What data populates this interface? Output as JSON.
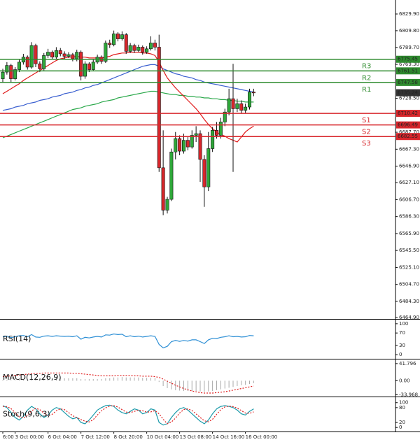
{
  "chart_data": [
    {
      "type": "candlestick",
      "categories": [
        "6:00",
        null,
        null,
        "3 Oct 00:00",
        null,
        null,
        null,
        null,
        null,
        null,
        null,
        "6 Oct 04:00",
        null,
        null,
        null,
        null,
        null,
        null,
        null,
        "7 Oct 12:00",
        null,
        null,
        null,
        null,
        null,
        null,
        null,
        "8 Oct 20:00",
        null,
        null,
        null,
        null,
        null,
        null,
        null,
        "10 Oct 04:00",
        null,
        null,
        null,
        null,
        null,
        null,
        null,
        "13 Oct 08:00",
        null,
        null,
        null,
        null,
        null,
        null,
        null,
        "14 Oct 16:00",
        null,
        null,
        null,
        null,
        null,
        null,
        null,
        "16 Oct 00:00",
        null,
        null
      ],
      "open": [
        6752,
        6760,
        6768,
        6752,
        6763,
        6772,
        6778,
        6766,
        6792,
        6770,
        6764,
        6780,
        6784,
        6778,
        6786,
        6782,
        6779,
        6781,
        6776,
        6784,
        6755,
        6770,
        6763,
        6772,
        6778,
        6773,
        6795,
        6793,
        6806,
        6800,
        6805,
        6785,
        6792,
        6786,
        6790,
        6784,
        6788,
        6795,
        6790,
        6645,
        6594,
        6607,
        6664,
        6680,
        6665,
        6678,
        6670,
        6684,
        6686,
        6655,
        6622,
        6668,
        6690,
        6684,
        6700,
        6712,
        6728,
        6716,
        6722,
        6714,
        6718,
        6736
      ],
      "high": [
        6764,
        6772,
        6770,
        6766,
        6776,
        6782,
        6780,
        6796,
        6794,
        6773,
        6783,
        6788,
        6786,
        6790,
        6789,
        6785,
        6784,
        6783,
        6787,
        6786,
        6773,
        6772,
        6775,
        6781,
        6780,
        6798,
        6799,
        6810,
        6808,
        6809,
        6807,
        6795,
        6794,
        6793,
        6792,
        6791,
        6803,
        6799,
        6805,
        6690,
        6610,
        6668,
        6688,
        6684,
        6686,
        6682,
        6690,
        6695,
        6690,
        6660,
        6688,
        6694,
        6700,
        6705,
        6716,
        6740,
        6770,
        6728,
        6726,
        6722,
        6740,
        6740
      ],
      "low": [
        6748,
        6757,
        6748,
        6750,
        6760,
        6769,
        6763,
        6764,
        6766,
        6760,
        6762,
        6777,
        6775,
        6776,
        6779,
        6776,
        6777,
        6773,
        6773,
        6750,
        6752,
        6760,
        6761,
        6770,
        6770,
        6771,
        6789,
        6791,
        6797,
        6798,
        6782,
        6783,
        6783,
        6784,
        6781,
        6782,
        6786,
        6786,
        6640,
        6588,
        6590,
        6605,
        6655,
        6660,
        6662,
        6666,
        6668,
        6676,
        6628,
        6598,
        6617,
        6664,
        6680,
        6680,
        6695,
        6708,
        6640,
        6712,
        6710,
        6711,
        6715,
        6731
      ],
      "close": [
        6760,
        6768,
        6752,
        6763,
        6772,
        6778,
        6766,
        6792,
        6770,
        6764,
        6780,
        6784,
        6778,
        6786,
        6782,
        6779,
        6781,
        6776,
        6784,
        6755,
        6770,
        6763,
        6772,
        6778,
        6773,
        6795,
        6793,
        6806,
        6800,
        6805,
        6785,
        6792,
        6786,
        6790,
        6784,
        6788,
        6795,
        6790,
        6645,
        6594,
        6607,
        6664,
        6680,
        6665,
        6678,
        6670,
        6684,
        6686,
        6655,
        6622,
        6668,
        6690,
        6684,
        6700,
        6712,
        6728,
        6716,
        6722,
        6714,
        6718,
        6736,
        6735
      ],
      "up_color": "#2fa83a",
      "down_color": "#d8262b",
      "series": [
        {
          "color": "#2aa84a",
          "values": [
            6681,
            6683,
            6685,
            6687,
            6689,
            6691,
            6693,
            6695,
            6697,
            6699,
            6701,
            6703,
            6705,
            6707,
            6709,
            6711,
            6713,
            6715,
            6716,
            6717,
            6719,
            6720,
            6721,
            6722,
            6724,
            6725,
            6726,
            6727,
            6729,
            6730,
            6731,
            6732,
            6733,
            6734,
            6735,
            6736,
            6737,
            6737,
            6736,
            6735,
            6734,
            6733,
            6733,
            6732,
            6732,
            6731,
            6731,
            6730,
            6730,
            6729,
            6729,
            6728,
            6728,
            6727,
            6727,
            6726,
            6726,
            6725,
            6725,
            6724,
            6724,
            6724
          ]
        },
        {
          "color": "#3a5fd0",
          "values": [
            6714,
            6715,
            6716,
            6718,
            6719,
            6720,
            6722,
            6723,
            6724,
            6726,
            6727,
            6728,
            6730,
            6731,
            6732,
            6734,
            6735,
            6736,
            6738,
            6739,
            6741,
            6742,
            6744,
            6745,
            6747,
            6749,
            6751,
            6753,
            6755,
            6757,
            6759,
            6761,
            6763,
            6765,
            6767,
            6768,
            6769,
            6769,
            6767,
            6764,
            6762,
            6760,
            6758,
            6757,
            6755,
            6754,
            6753,
            6751,
            6750,
            6748,
            6747,
            6746,
            6745,
            6744,
            6743,
            6742,
            6741,
            6740,
            6739,
            6738,
            6737,
            6736
          ]
        },
        {
          "color": "#e01a1a",
          "values": [
            6734,
            6737,
            6740,
            6743,
            6746,
            6750,
            6753,
            6756,
            6759,
            6762,
            6765,
            6768,
            6771,
            6774,
            6776,
            6777,
            6778,
            6778,
            6779,
            6778,
            6778,
            6777,
            6777,
            6777,
            6777,
            6778,
            6779,
            6781,
            6782,
            6783,
            6783,
            6784,
            6784,
            6784,
            6783,
            6783,
            6782,
            6780,
            6772,
            6762,
            6753,
            6747,
            6741,
            6736,
            6731,
            6726,
            6721,
            6716,
            6710,
            6703,
            6697,
            6692,
            6688,
            6685,
            6683,
            6680,
            6678,
            6676,
            6682,
            6688,
            6692,
            6695
          ]
        }
      ],
      "levels": [
        {
          "name": "R3",
          "value": 6775.45,
          "color": "#2e8b2e"
        },
        {
          "name": "R2",
          "value": 6761.51,
          "color": "#2e8b2e"
        },
        {
          "name": "R1",
          "value": 6747.58,
          "color": "#2e8b2e"
        },
        {
          "name": "S1",
          "value": 6710.42,
          "color": "#d8262b"
        },
        {
          "name": "S2",
          "value": 6696.49,
          "color": "#d8262b"
        },
        {
          "name": "S3",
          "value": 6682.55,
          "color": "#d8262b"
        }
      ],
      "last_price": 6735.24,
      "last_price_color": "#333333",
      "ylim": [
        6464.06,
        6846.72
      ],
      "yticks": [
        {
          "value": 6829.9,
          "label": "6829.90"
        },
        {
          "value": 6809.8,
          "label": "6809.80"
        },
        {
          "value": 6789.7,
          "label": "6789.70"
        },
        {
          "value": 6769.3,
          "label": "6769.30"
        },
        {
          "value": 6728.5,
          "label": "6728.50"
        },
        {
          "value": 6687.7,
          "label": "6687.70"
        },
        {
          "value": 6667.3,
          "label": "6667.30"
        },
        {
          "value": 6646.9,
          "label": "6646.90"
        },
        {
          "value": 6627.1,
          "label": "6627.10"
        },
        {
          "value": 6606.7,
          "label": "6606.70"
        },
        {
          "value": 6586.3,
          "label": "6586.30"
        },
        {
          "value": 6565.9,
          "label": "6565.90"
        },
        {
          "value": 6545.5,
          "label": "6545.50"
        },
        {
          "value": 6525.1,
          "label": "6525.10"
        },
        {
          "value": 6504.7,
          "label": "6504.70"
        },
        {
          "value": 6484.3,
          "label": "6484.30"
        },
        {
          "value": 6464.9,
          "label": "6464.90"
        }
      ]
    },
    {
      "type": "line",
      "title": "RSI(14)",
      "series": [
        {
          "color": "#2d8fd5",
          "values": [
            58,
            60,
            55,
            58,
            61,
            62,
            58,
            65,
            57,
            56,
            60,
            61,
            59,
            61,
            60,
            59,
            60,
            58,
            61,
            50,
            56,
            54,
            57,
            59,
            57,
            64,
            63,
            67,
            65,
            66,
            58,
            61,
            58,
            60,
            57,
            59,
            61,
            59,
            33,
            22,
            27,
            42,
            46,
            43,
            46,
            44,
            48,
            48,
            42,
            36,
            48,
            53,
            52,
            56,
            58,
            61,
            58,
            59,
            57,
            58,
            62,
            61
          ]
        }
      ],
      "ylim": [
        -11,
        111
      ],
      "yticks": [
        0,
        30,
        70,
        100
      ]
    },
    {
      "type": "bar",
      "title": "MACD(12,26,9)",
      "color": "#a8a8a8",
      "values": [
        2,
        2,
        1,
        1,
        2,
        3,
        3,
        5,
        5,
        5,
        6,
        6,
        6,
        7,
        7,
        6,
        6,
        6,
        6,
        4,
        4,
        4,
        4,
        4,
        4,
        6,
        6,
        8,
        8,
        9,
        8,
        8,
        8,
        8,
        7,
        7,
        7,
        7,
        -3,
        -13,
        -18,
        -21,
        -23,
        -24,
        -25,
        -25,
        -25,
        -25,
        -26,
        -27,
        -26,
        -25,
        -23,
        -21,
        -19,
        -17,
        -15,
        -13,
        -11,
        -10,
        -8,
        -6
      ],
      "series": [
        {
          "color": "#e02020",
          "dashed": true,
          "values": [
            10,
            11,
            12,
            13,
            14,
            15,
            16,
            17,
            18,
            18,
            19,
            19,
            19,
            19,
            19,
            19,
            19,
            18,
            18,
            17,
            16,
            15,
            14,
            13,
            12,
            12,
            12,
            12,
            13,
            13,
            13,
            13,
            12,
            12,
            11,
            11,
            11,
            10,
            8,
            4,
            -1,
            -6,
            -11,
            -15,
            -19,
            -22,
            -25,
            -27,
            -29,
            -30,
            -30,
            -30,
            -29,
            -28,
            -27,
            -25,
            -23,
            -21,
            -19,
            -17,
            -15,
            -13
          ]
        }
      ],
      "ylim": [
        -36.8,
        51.8
      ],
      "yticks": [
        41.796,
        {
          "value": 0,
          "label": "0.00"
        },
        -33.968
      ]
    },
    {
      "type": "line",
      "title": "Stoch(9,6,3)",
      "series": [
        {
          "color": "#1b9aaa",
          "values": [
            88,
            80,
            60,
            40,
            30,
            45,
            70,
            85,
            75,
            55,
            40,
            50,
            70,
            80,
            75,
            60,
            45,
            35,
            40,
            20,
            15,
            30,
            50,
            70,
            80,
            88,
            90,
            85,
            70,
            60,
            55,
            65,
            75,
            70,
            55,
            60,
            75,
            70,
            20,
            10,
            15,
            40,
            60,
            75,
            80,
            70,
            55,
            40,
            25,
            15,
            30,
            55,
            75,
            85,
            88,
            85,
            80,
            70,
            55,
            50,
            65,
            75
          ]
        },
        {
          "color": "#e02020",
          "dashed": true,
          "values": [
            85,
            84,
            76,
            60,
            43,
            38,
            48,
            67,
            77,
            72,
            57,
            48,
            53,
            67,
            75,
            72,
            60,
            47,
            40,
            32,
            25,
            22,
            32,
            50,
            67,
            79,
            86,
            88,
            82,
            72,
            62,
            60,
            65,
            70,
            67,
            62,
            63,
            68,
            55,
            33,
            15,
            22,
            38,
            58,
            72,
            75,
            68,
            55,
            40,
            27,
            23,
            33,
            53,
            72,
            83,
            86,
            84,
            78,
            68,
            58,
            57,
            63
          ]
        }
      ],
      "ylim": [
        -13.5,
        119
      ],
      "yticks": [
        0,
        20,
        80,
        100
      ]
    }
  ]
}
